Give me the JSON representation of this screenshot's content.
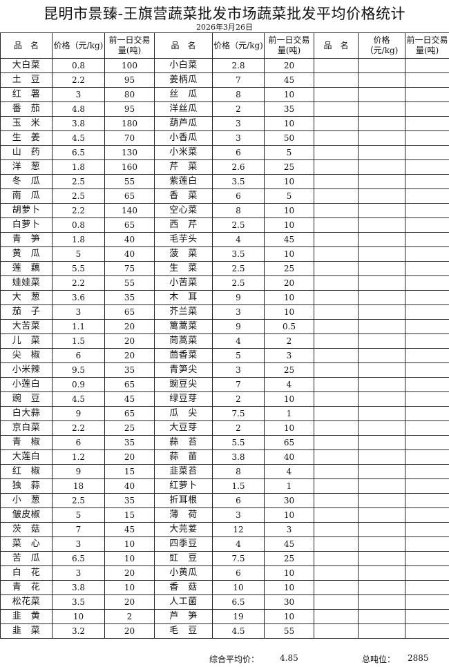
{
  "title": "昆明市景臻-王旗营蔬菜批发市场蔬菜批发平均价格统计",
  "date": "2026年3月26日",
  "headers": {
    "name": "品　名",
    "price": "价格（元/kg)",
    "volume": "前一日交易量(吨)"
  },
  "rows": [
    [
      [
        "大白菜",
        "0.8",
        "100"
      ],
      [
        "小白菜",
        "2.8",
        "20"
      ]
    ],
    [
      [
        "土　豆",
        "2.2",
        "95"
      ],
      [
        "姜柄瓜",
        "7",
        "45"
      ]
    ],
    [
      [
        "红　薯",
        "3",
        "80"
      ],
      [
        "丝　瓜",
        "8",
        "10"
      ]
    ],
    [
      [
        "番　茄",
        "4.8",
        "95"
      ],
      [
        "洋丝瓜",
        "2",
        "35"
      ]
    ],
    [
      [
        "玉　米",
        "3.8",
        "180"
      ],
      [
        "葫芦瓜",
        "3",
        "10"
      ]
    ],
    [
      [
        "生　姜",
        "4.5",
        "70"
      ],
      [
        "小香瓜",
        "3",
        "50"
      ]
    ],
    [
      [
        "山　药",
        "6.5",
        "130"
      ],
      [
        "小米菜",
        "6",
        "5"
      ]
    ],
    [
      [
        "洋　葱",
        "1.8",
        "160"
      ],
      [
        "芹　菜",
        "2.6",
        "25"
      ]
    ],
    [
      [
        "冬　瓜",
        "2.5",
        "55"
      ],
      [
        "紫莲白",
        "3.5",
        "10"
      ]
    ],
    [
      [
        "南　瓜",
        "2.5",
        "65"
      ],
      [
        "香　菜",
        "6",
        "5"
      ]
    ],
    [
      [
        "胡萝卜",
        "2.2",
        "140"
      ],
      [
        "空心菜",
        "8",
        "10"
      ]
    ],
    [
      [
        "白萝卜",
        "0.8",
        "65"
      ],
      [
        "西　芹",
        "2.5",
        "10"
      ]
    ],
    [
      [
        "青　笋",
        "1.8",
        "40"
      ],
      [
        "毛芋头",
        "4",
        "45"
      ]
    ],
    [
      [
        "黄　瓜",
        "5",
        "40"
      ],
      [
        "菠　菜",
        "3.5",
        "10"
      ]
    ],
    [
      [
        "莲　藕",
        "5.5",
        "75"
      ],
      [
        "生　菜",
        "2.5",
        "25"
      ]
    ],
    [
      [
        "娃娃菜",
        "2.2",
        "55"
      ],
      [
        "小苦菜",
        "2.5",
        "20"
      ]
    ],
    [
      [
        "大　葱",
        "3.6",
        "35"
      ],
      [
        "木　耳",
        "9",
        "10"
      ]
    ],
    [
      [
        "茄　子",
        "3",
        "65"
      ],
      [
        "芥兰菜",
        "3",
        "10"
      ]
    ],
    [
      [
        "大苦菜",
        "1.1",
        "20"
      ],
      [
        "篱蒿菜",
        "9",
        "0.5"
      ]
    ],
    [
      [
        "儿　菜",
        "1.5",
        "20"
      ],
      [
        "茼蒿菜",
        "4",
        "2"
      ]
    ],
    [
      [
        "尖　椒",
        "6",
        "20"
      ],
      [
        "茴香菜",
        "5",
        "3"
      ]
    ],
    [
      [
        "小米辣",
        "9.5",
        "35"
      ],
      [
        "青笋尖",
        "3",
        "25"
      ]
    ],
    [
      [
        "小莲白",
        "0.9",
        "65"
      ],
      [
        "豌豆尖",
        "7",
        "4"
      ]
    ],
    [
      [
        "豌　豆",
        "4.5",
        "45"
      ],
      [
        "绿豆芽",
        "2",
        "10"
      ]
    ],
    [
      [
        "白大蒜",
        "9",
        "65"
      ],
      [
        "瓜　尖",
        "7.5",
        "1"
      ]
    ],
    [
      [
        "京白菜",
        "2.2",
        "25"
      ],
      [
        "大豆芽",
        "2",
        "10"
      ]
    ],
    [
      [
        "青　椒",
        "6",
        "35"
      ],
      [
        "蒜　苔",
        "5.5",
        "65"
      ]
    ],
    [
      [
        "大莲白",
        "1.2",
        "20"
      ],
      [
        "蒜　苗",
        "3.8",
        "40"
      ]
    ],
    [
      [
        "红　椒",
        "9",
        "15"
      ],
      [
        "韭菜苔",
        "8",
        "4"
      ]
    ],
    [
      [
        "独　蒜",
        "18",
        "40"
      ],
      [
        "红萝卜",
        "1.5",
        "1"
      ]
    ],
    [
      [
        "小　葱",
        "2.5",
        "35"
      ],
      [
        "折耳根",
        "6",
        "30"
      ]
    ],
    [
      [
        "皱皮椒",
        "5",
        "15"
      ],
      [
        "薄　荷",
        "3",
        "10"
      ]
    ],
    [
      [
        "茨　菇",
        "7",
        "45"
      ],
      [
        "大芫荽",
        "12",
        "3"
      ]
    ],
    [
      [
        "菜　心",
        "3",
        "10"
      ],
      [
        "四季豆",
        "4",
        "45"
      ]
    ],
    [
      [
        "苦　瓜",
        "6.5",
        "10"
      ],
      [
        "豇　豆",
        "7.5",
        "25"
      ]
    ],
    [
      [
        "白　花",
        "3",
        "20"
      ],
      [
        "小黄瓜",
        "6",
        "10"
      ]
    ],
    [
      [
        "青　花",
        "3.8",
        "10"
      ],
      [
        "香　菇",
        "10",
        "10"
      ]
    ],
    [
      [
        "松花菜",
        "3.5",
        "20"
      ],
      [
        "人工菌",
        "6.5",
        "30"
      ]
    ],
    [
      [
        "韭　黄",
        "10",
        "2"
      ],
      [
        "芦　笋",
        "19",
        "10"
      ]
    ],
    [
      [
        "韭　菜",
        "3.2",
        "20"
      ],
      [
        "毛　豆",
        "4.5",
        "55"
      ]
    ]
  ],
  "footer": {
    "avg_label": "综合平均价：",
    "avg_value": "4.85",
    "total_label": "总吨位：",
    "total_value": "2885"
  }
}
